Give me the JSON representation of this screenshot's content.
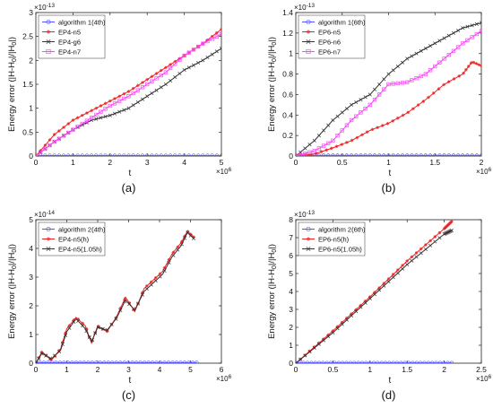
{
  "ylabel_text": "Energy error (|H-H",
  "ylabel_sub": "0",
  "ylabel_mid": "|/|H",
  "ylabel_end": "|)",
  "chart_data": [
    {
      "panel_label": "(a)",
      "type": "line",
      "xlim": [
        0,
        5
      ],
      "ylim": [
        0,
        3
      ],
      "xticks": [
        "0",
        "1",
        "2",
        "3",
        "4",
        "5"
      ],
      "yticks": [
        "0",
        "0.5",
        "1",
        "1.5",
        "2",
        "2.5",
        "3"
      ],
      "xexp": "6",
      "yexp": "-13",
      "xlabel": "t",
      "legend": "top-left",
      "series": [
        {
          "name": "algorithm 1(4th)",
          "color": "#5555ff",
          "marker": "o",
          "x": [
            0,
            5
          ],
          "y": [
            0.01,
            0.01
          ]
        },
        {
          "name": "EP4-n5",
          "color": "#ee2222",
          "marker": "*",
          "x": [
            0,
            0.5,
            1,
            1.5,
            2,
            2.5,
            3,
            3.5,
            4,
            4.5,
            5
          ],
          "y": [
            0,
            0.45,
            0.75,
            0.95,
            1.15,
            1.35,
            1.6,
            1.85,
            2.1,
            2.35,
            2.65
          ]
        },
        {
          "name": "EP4-g6",
          "color": "#333333",
          "marker": "x",
          "x": [
            0,
            0.5,
            1,
            1.5,
            2,
            2.5,
            3,
            3.5,
            4,
            4.5,
            5
          ],
          "y": [
            0,
            0.3,
            0.55,
            0.75,
            0.85,
            1.0,
            1.25,
            1.5,
            1.8,
            2.0,
            2.25
          ]
        },
        {
          "name": "EP4-n7",
          "color": "#ff44ff",
          "marker": "s",
          "x": [
            0,
            0.5,
            1,
            1.5,
            2,
            2.5,
            3,
            3.5,
            4,
            4.5,
            5
          ],
          "y": [
            0,
            0.3,
            0.55,
            0.8,
            1.05,
            1.25,
            1.5,
            1.75,
            2.1,
            2.35,
            2.55
          ]
        }
      ]
    },
    {
      "panel_label": "(b)",
      "type": "line",
      "xlim": [
        0,
        2
      ],
      "ylim": [
        0,
        1.4
      ],
      "xticks": [
        "0",
        "0.5",
        "1",
        "1.5",
        "2"
      ],
      "yticks": [
        "0",
        "0.2",
        "0.4",
        "0.6",
        "0.8",
        "1",
        "1.2",
        "1.4"
      ],
      "xexp": "6",
      "yexp": "-13",
      "xlabel": "t",
      "legend": "top-left",
      "series": [
        {
          "name": "algorithm 1(6th)",
          "color": "#5555ff",
          "marker": "o",
          "x": [
            0,
            2
          ],
          "y": [
            0.005,
            0.005
          ]
        },
        {
          "name": "EP6-n5",
          "color": "#ee2222",
          "marker": "*",
          "x": [
            0,
            0.2,
            0.4,
            0.6,
            0.8,
            1.0,
            1.2,
            1.4,
            1.6,
            1.8,
            1.9,
            2.0
          ],
          "y": [
            0,
            0.02,
            0.08,
            0.15,
            0.25,
            0.32,
            0.42,
            0.55,
            0.7,
            0.8,
            0.92,
            0.88
          ]
        },
        {
          "name": "EP6-n6",
          "color": "#333333",
          "marker": "x",
          "x": [
            0,
            0.2,
            0.4,
            0.6,
            0.8,
            1.0,
            1.2,
            1.4,
            1.6,
            1.8,
            2.0
          ],
          "y": [
            0,
            0.15,
            0.35,
            0.5,
            0.6,
            0.8,
            0.95,
            1.05,
            1.15,
            1.25,
            1.3
          ]
        },
        {
          "name": "EP6-n7",
          "color": "#ff44ff",
          "marker": "s",
          "x": [
            0,
            0.2,
            0.4,
            0.6,
            0.8,
            1.0,
            1.2,
            1.4,
            1.6,
            1.8,
            2.0
          ],
          "y": [
            0,
            0.05,
            0.15,
            0.35,
            0.5,
            0.7,
            0.72,
            0.8,
            0.95,
            1.1,
            1.22
          ]
        }
      ]
    },
    {
      "panel_label": "(c)",
      "type": "line",
      "xlim": [
        0,
        6
      ],
      "ylim": [
        0,
        5
      ],
      "xticks": [
        "0",
        "1",
        "2",
        "3",
        "4",
        "5",
        "6"
      ],
      "yticks": [
        "0",
        "1",
        "2",
        "3",
        "4",
        "5"
      ],
      "xexp": "6",
      "yexp": "-14",
      "xlabel": "t",
      "legend": "top-left",
      "series": [
        {
          "name": "algorithm 2(4th)",
          "color": "#5555ff",
          "marker": "o",
          "x": [
            0,
            5.2
          ],
          "y": [
            0.02,
            0.02
          ]
        },
        {
          "name": "EP4-n5(h)",
          "color": "#ee2222",
          "marker": "*",
          "x": [
            0,
            0.2,
            0.5,
            0.8,
            1.0,
            1.3,
            1.6,
            1.8,
            2.0,
            2.3,
            2.6,
            2.9,
            3.2,
            3.5,
            3.8,
            4.1,
            4.4,
            4.7,
            4.9,
            5.1
          ],
          "y": [
            0,
            0.4,
            0.1,
            0.5,
            1.2,
            1.6,
            1.3,
            0.7,
            1.3,
            1.1,
            1.6,
            2.3,
            1.8,
            2.6,
            2.9,
            3.2,
            3.8,
            4.2,
            4.6,
            4.4
          ]
        },
        {
          "name": "EP4-n5(1.05h)",
          "color": "#333333",
          "marker": "x",
          "x": [
            0,
            0.2,
            0.5,
            0.8,
            1.0,
            1.3,
            1.6,
            1.8,
            2.0,
            2.3,
            2.6,
            2.9,
            3.2,
            3.5,
            3.8,
            4.1,
            4.4,
            4.7,
            4.9,
            5.1
          ],
          "y": [
            0,
            0.35,
            0.15,
            0.45,
            1.1,
            1.55,
            1.2,
            0.75,
            1.25,
            1.15,
            1.55,
            2.2,
            1.85,
            2.5,
            2.8,
            3.1,
            3.7,
            4.1,
            4.55,
            4.35
          ]
        }
      ]
    },
    {
      "panel_label": "(d)",
      "type": "line",
      "xlim": [
        0,
        2.5
      ],
      "ylim": [
        0,
        8
      ],
      "xticks": [
        "0",
        "0.5",
        "1",
        "1.5",
        "2",
        "2.5"
      ],
      "yticks": [
        "0",
        "1",
        "2",
        "3",
        "4",
        "5",
        "6",
        "7",
        "8"
      ],
      "xexp": "6",
      "yexp": "-13",
      "xlabel": "t",
      "legend": "top-left",
      "series": [
        {
          "name": "algorithm 2(6th)",
          "color": "#5555ff",
          "marker": "o",
          "x": [
            0,
            2.1
          ],
          "y": [
            0.02,
            0.02
          ]
        },
        {
          "name": "EP6-n5(h)",
          "color": "#ee2222",
          "marker": "*",
          "x": [
            0,
            0.5,
            1.0,
            1.5,
            2.0,
            2.1
          ],
          "y": [
            0,
            1.8,
            3.7,
            5.7,
            7.5,
            7.9
          ]
        },
        {
          "name": "EP6-n5(1.05h)",
          "color": "#333333",
          "marker": "x",
          "x": [
            0,
            0.5,
            1.0,
            1.5,
            2.0,
            2.1
          ],
          "y": [
            0,
            1.7,
            3.6,
            5.5,
            7.2,
            7.4
          ]
        }
      ]
    }
  ]
}
